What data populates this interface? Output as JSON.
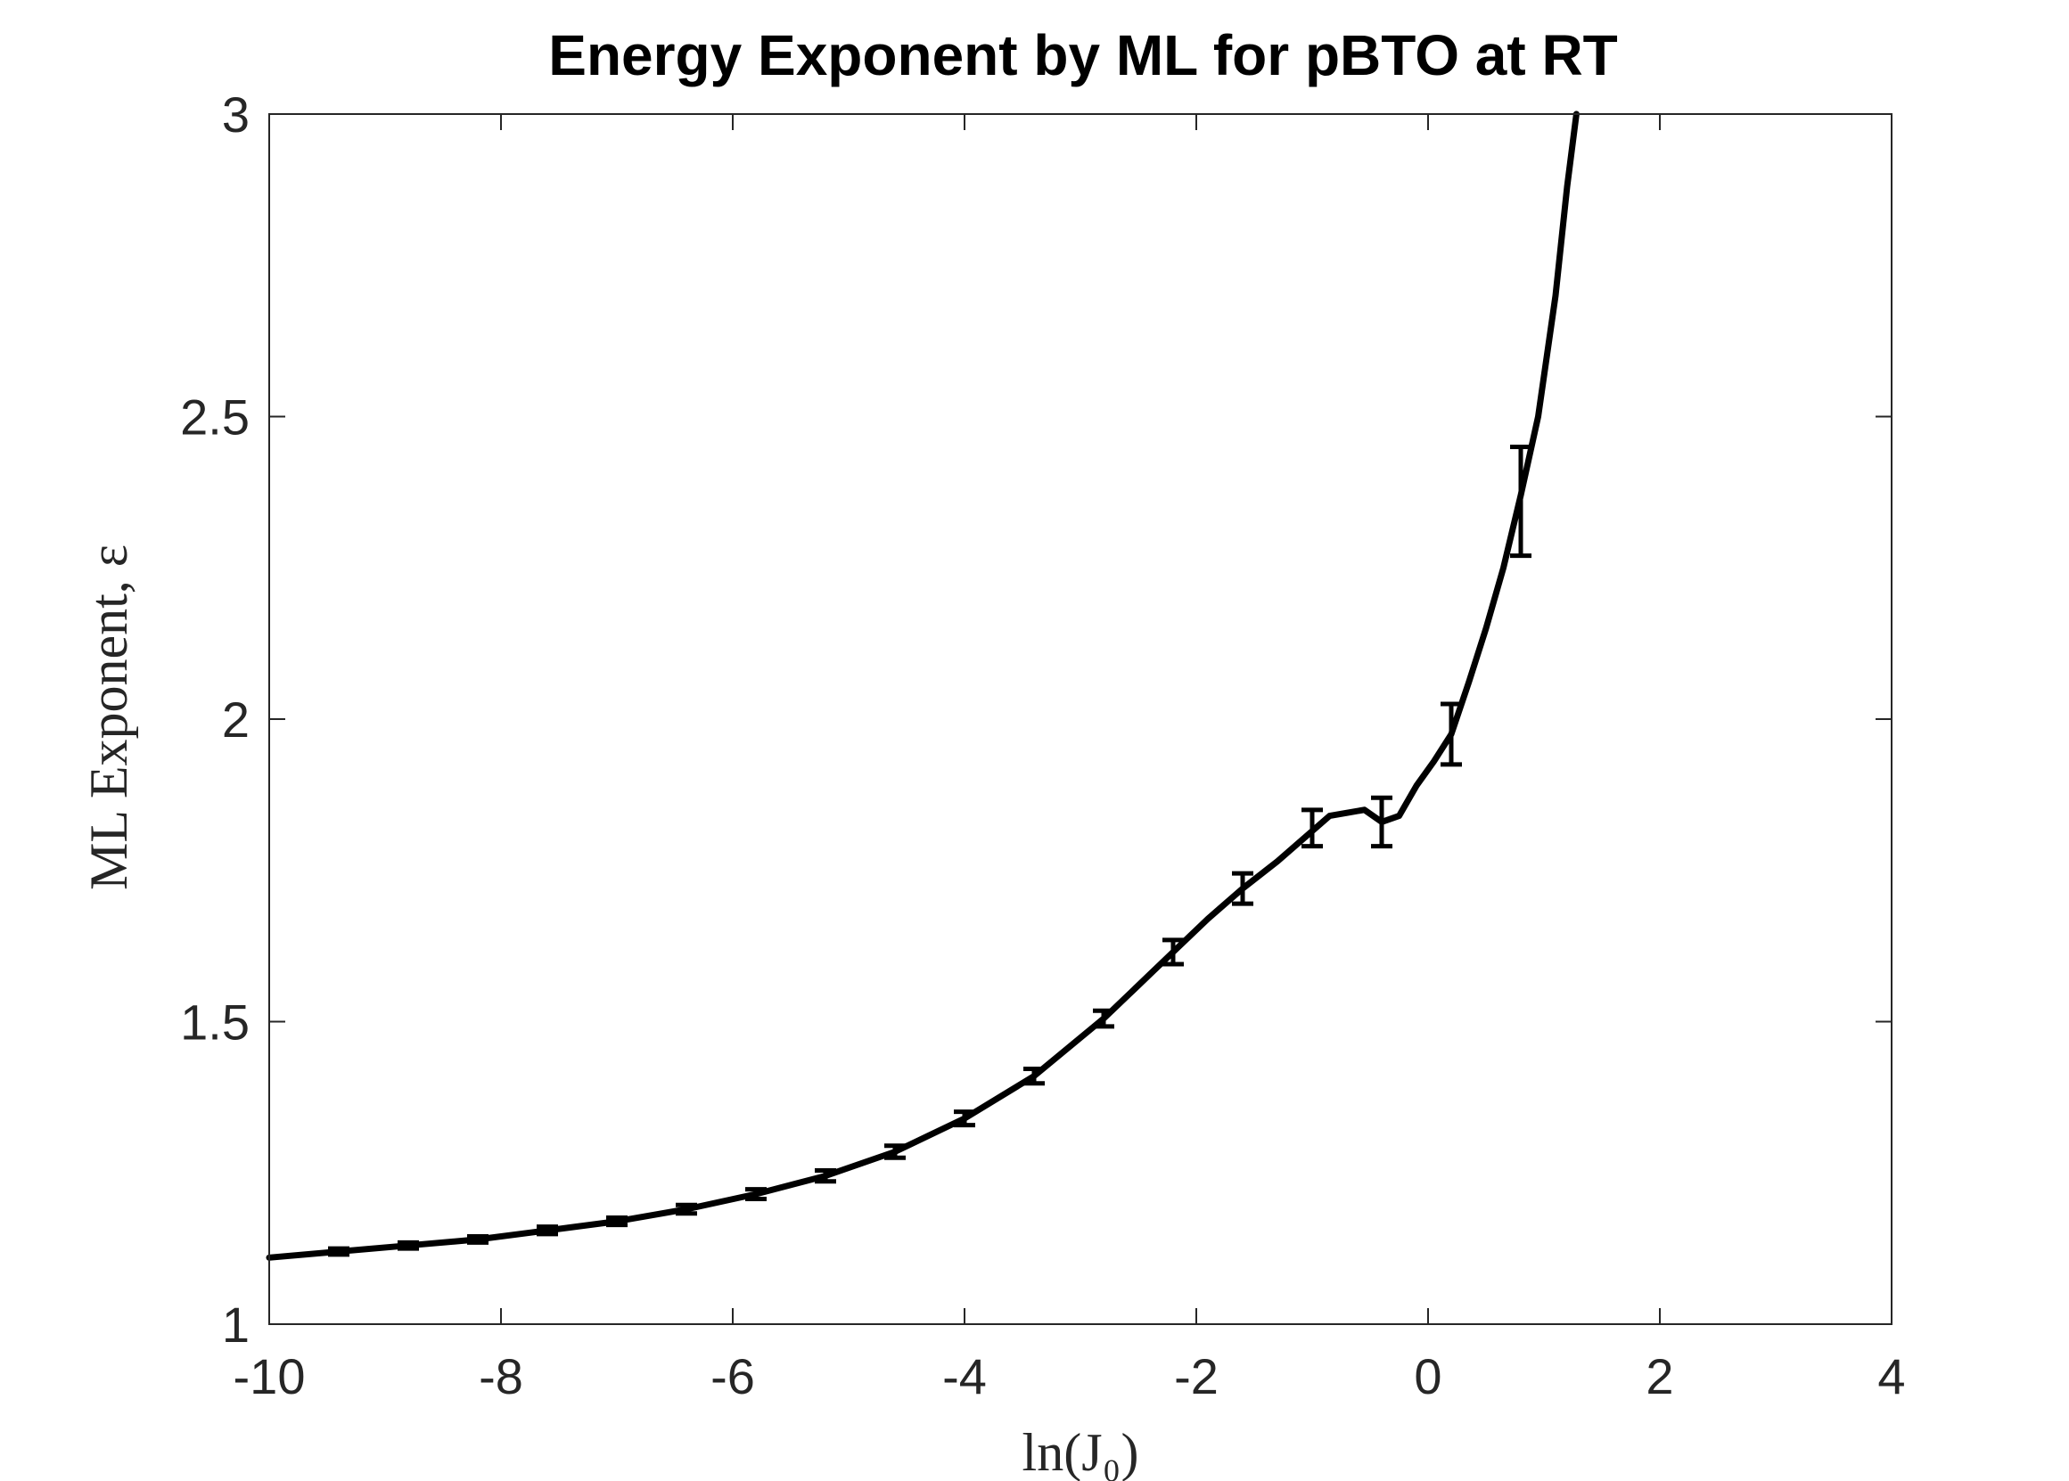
{
  "chart_data": {
    "type": "line",
    "title": "Energy Exponent by ML for pBTO at RT",
    "xlabel": "ln(J₀)",
    "ylabel": "ML Exponent, ε",
    "xlim": [
      -10,
      4
    ],
    "ylim": [
      1,
      3
    ],
    "x_ticks": [
      -10,
      -8,
      -6,
      -4,
      -2,
      0,
      2,
      4
    ],
    "x_tick_labels": [
      "-10",
      "-8",
      "-6",
      "-4",
      "-2",
      "0",
      "2",
      "4"
    ],
    "y_ticks": [
      1,
      1.5,
      2,
      2.5,
      3
    ],
    "y_tick_labels": [
      "1",
      "1.5",
      "2",
      "2.5",
      "3"
    ],
    "grid": false,
    "line_color": "#000000",
    "series": [
      {
        "x": [
          -10,
          -9.4,
          -8.8,
          -8.2,
          -7.6,
          -7.0,
          -6.4,
          -5.8,
          -5.2,
          -4.6,
          -4.0,
          -3.4,
          -2.8,
          -2.5,
          -2.2,
          -1.9,
          -1.6,
          -1.3,
          -1.0,
          -0.85,
          -0.7,
          -0.55,
          -0.4,
          -0.25,
          -0.1,
          0.05,
          0.2,
          0.35,
          0.5,
          0.65,
          0.8,
          0.95,
          1.1,
          1.2,
          1.28
        ],
        "y": [
          1.11,
          1.12,
          1.13,
          1.14,
          1.155,
          1.17,
          1.19,
          1.215,
          1.245,
          1.285,
          1.34,
          1.41,
          1.505,
          1.56,
          1.615,
          1.67,
          1.72,
          1.765,
          1.815,
          1.84,
          1.845,
          1.85,
          1.83,
          1.84,
          1.89,
          1.93,
          1.975,
          2.06,
          2.15,
          2.25,
          2.37,
          2.5,
          2.7,
          2.88,
          3.0
        ]
      }
    ],
    "error_bars": {
      "x": [
        -9.4,
        -8.8,
        -8.2,
        -7.6,
        -7.0,
        -6.4,
        -5.8,
        -5.2,
        -4.6,
        -4.0,
        -3.4,
        -2.8,
        -2.2,
        -1.6,
        -1.0,
        -0.4,
        0.2,
        0.8
      ],
      "y": [
        1.12,
        1.13,
        1.14,
        1.155,
        1.17,
        1.19,
        1.215,
        1.245,
        1.285,
        1.34,
        1.41,
        1.505,
        1.615,
        1.72,
        1.82,
        1.83,
        1.975,
        2.36
      ],
      "err": [
        0.005,
        0.005,
        0.005,
        0.006,
        0.006,
        0.007,
        0.008,
        0.009,
        0.01,
        0.011,
        0.012,
        0.013,
        0.02,
        0.025,
        0.03,
        0.04,
        0.05,
        0.09
      ]
    }
  }
}
